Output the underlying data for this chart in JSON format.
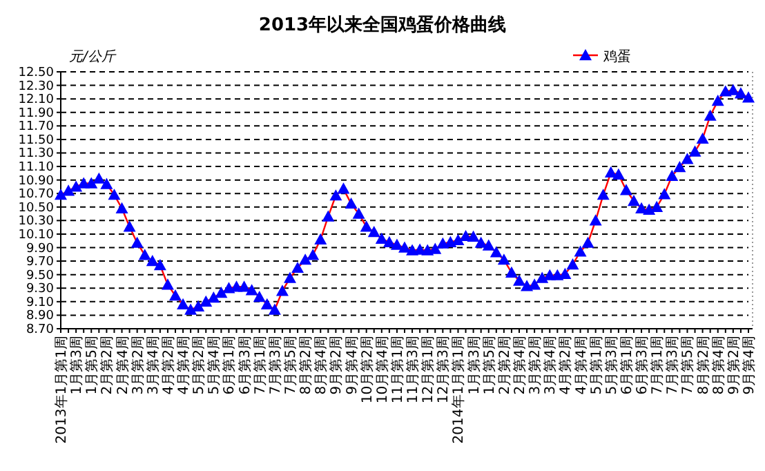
{
  "chart_data": {
    "type": "line",
    "title": "2013年以来全国鸡蛋价格曲线",
    "ylabel": "元/公斤",
    "categories": [
      "2013年1月第1周",
      null,
      "1月第3周",
      null,
      "1月第5周",
      null,
      "2月第2周",
      null,
      "2月第4周",
      null,
      "3月第2周",
      null,
      "3月第4周",
      null,
      "4月第2周",
      null,
      "4月第4周",
      null,
      "5月第2周",
      null,
      "5月第4周",
      null,
      "6月第1周",
      null,
      "6月第3周",
      null,
      "7月第1周",
      null,
      "7月第3周",
      null,
      "7月第5周",
      null,
      "8月第2周",
      null,
      "8月第4周",
      null,
      "9月第2周",
      null,
      "9月第4周",
      null,
      "10月第2周",
      null,
      "10月第4周",
      null,
      "11月第1周",
      null,
      "11月第3周",
      null,
      "12月第1周",
      null,
      "12月第3周",
      null,
      "2014年1月第1周",
      null,
      "1月第3周",
      null,
      "1月第5周",
      null,
      "2月第2周",
      null,
      "2月第4周",
      null,
      "3月第2周",
      null,
      "3月第4周",
      null,
      "4月第2周",
      null,
      "4月第4周",
      null,
      "5月第1周",
      null,
      "5月第3周",
      null,
      "6月第1周",
      null,
      "6月第3周",
      null,
      "7月第1周",
      null,
      "7月第3周",
      null,
      "7月第5周",
      null,
      "8月第2周",
      null,
      "8月第4周",
      null,
      "9月第2周",
      null,
      "9月第4周"
    ],
    "series": [
      {
        "name": "鸡蛋",
        "color": "#0000ff",
        "values": [
          10.68,
          10.74,
          10.8,
          10.85,
          10.85,
          10.92,
          10.84,
          10.68,
          10.48,
          10.21,
          9.97,
          9.79,
          9.7,
          9.64,
          9.35,
          9.19,
          9.06,
          8.98,
          9.03,
          9.1,
          9.16,
          9.23,
          9.3,
          9.32,
          9.32,
          9.27,
          9.17,
          9.06,
          8.98,
          9.26,
          9.45,
          9.6,
          9.72,
          9.79,
          10.02,
          10.36,
          10.67,
          10.77,
          10.55,
          10.4,
          10.21,
          10.13,
          10.03,
          9.98,
          9.94,
          9.9,
          9.86,
          9.87,
          9.86,
          9.88,
          9.96,
          9.98,
          10.01,
          10.07,
          10.06,
          9.97,
          9.93,
          9.83,
          9.72,
          9.53,
          9.41,
          9.33,
          9.35,
          9.45,
          9.49,
          9.49,
          9.51,
          9.65,
          9.84,
          9.97,
          10.3,
          10.68,
          11.01,
          10.98,
          10.75,
          10.59,
          10.48,
          10.46,
          10.5,
          10.69,
          10.96,
          11.09,
          11.21,
          11.32,
          11.51,
          11.85,
          12.07,
          12.21,
          12.23,
          12.18,
          12.12
        ]
      }
    ],
    "ylim": [
      8.7,
      12.5
    ],
    "yticks": [
      {
        "value": 8.7,
        "label": "8.70"
      },
      {
        "value": 8.9,
        "label": "8.90"
      },
      {
        "value": 9.1,
        "label": "9.10"
      },
      {
        "value": 9.3,
        "label": "9.30"
      },
      {
        "value": 9.5,
        "label": "9.50"
      },
      {
        "value": 9.7,
        "label": "9.70"
      },
      {
        "value": 9.9,
        "label": "9.90"
      },
      {
        "value": 10.1,
        "label": "10.10"
      },
      {
        "value": 10.3,
        "label": "10.30"
      },
      {
        "value": 10.5,
        "label": "10.50"
      },
      {
        "value": 10.7,
        "label": "10.70"
      },
      {
        "value": 10.9,
        "label": "10.90"
      },
      {
        "value": 11.1,
        "label": "11.10"
      },
      {
        "value": 11.3,
        "label": "11.30"
      },
      {
        "value": 11.5,
        "label": "11.50"
      },
      {
        "value": 11.7,
        "label": "11.70"
      },
      {
        "value": 11.9,
        "label": "11.90"
      },
      {
        "value": 12.1,
        "label": "12.10"
      },
      {
        "value": 12.3,
        "label": "12.30"
      },
      {
        "value": 12.5,
        "label": "12.50"
      }
    ],
    "grid": "y",
    "legend": "top right",
    "marker": "triangle",
    "line_style": "solid"
  }
}
